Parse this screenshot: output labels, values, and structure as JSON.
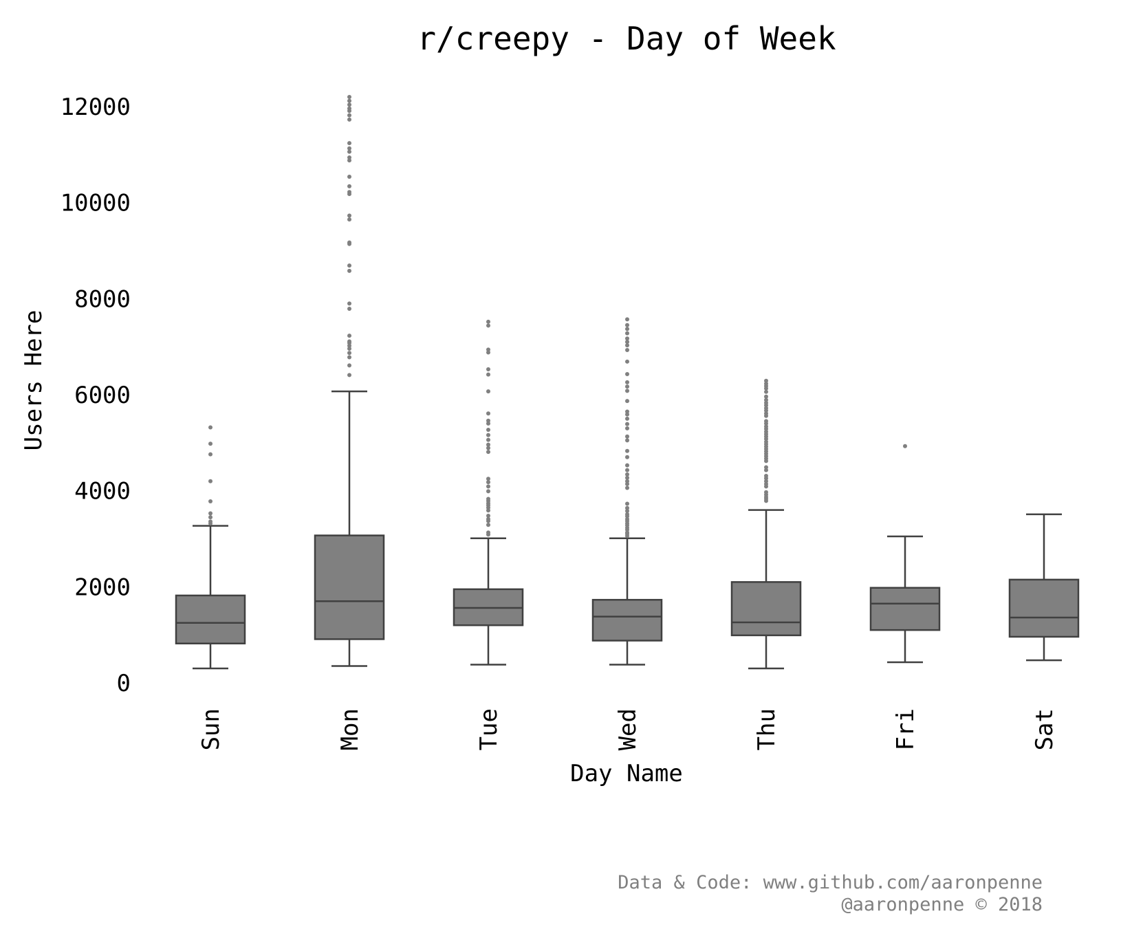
{
  "chart_data": {
    "type": "box",
    "title": "r/creepy - Day of Week",
    "xlabel": "Day Name",
    "ylabel": "Users Here",
    "ylim": [
      0,
      12500
    ],
    "yticks": [
      0,
      2000,
      4000,
      6000,
      8000,
      10000,
      12000
    ],
    "grid": false,
    "colors": {
      "box_fill": "#808080",
      "box_edge": "#404040",
      "outlier": "#808080"
    },
    "categories": [
      "Sun",
      "Mon",
      "Tue",
      "Wed",
      "Thu",
      "Fri",
      "Sat"
    ],
    "boxes": [
      {
        "category": "Sun",
        "whisker_low": 300,
        "q1": 820,
        "median": 1250,
        "q3": 1820,
        "whisker_high": 3270,
        "outliers": [
          3320,
          3360,
          3450,
          3530,
          3780,
          4200,
          4760,
          4980,
          5320
        ]
      },
      {
        "category": "Mon",
        "whisker_low": 350,
        "q1": 910,
        "median": 1700,
        "q3": 3070,
        "whisker_high": 6070,
        "outliers": [
          6410,
          6610,
          6780,
          6870,
          6960,
          7020,
          7080,
          7110,
          7230,
          7790,
          7900,
          8580,
          8690,
          9140,
          9170,
          9650,
          9730,
          10180,
          10220,
          10340,
          10540,
          10880,
          10940,
          11060,
          11130,
          11240,
          11730,
          11820,
          11910,
          11960,
          12040,
          12120,
          12200
        ]
      },
      {
        "category": "Tue",
        "whisker_low": 380,
        "q1": 1200,
        "median": 1560,
        "q3": 1950,
        "whisker_high": 3010,
        "outliers": [
          3090,
          3130,
          3290,
          3370,
          3410,
          3480,
          3590,
          3650,
          3700,
          3740,
          3790,
          3830,
          3990,
          4090,
          4180,
          4250,
          4810,
          4890,
          4960,
          5060,
          5160,
          5270,
          5400,
          5460,
          5610,
          6070,
          6420,
          6530,
          6880,
          6940,
          7440,
          7520
        ]
      },
      {
        "category": "Wed",
        "whisker_low": 380,
        "q1": 880,
        "median": 1380,
        "q3": 1730,
        "whisker_high": 3010,
        "outliers": [
          3060,
          3100,
          3130,
          3190,
          3230,
          3280,
          3320,
          3370,
          3410,
          3470,
          3510,
          3580,
          3640,
          3730,
          4060,
          4140,
          4200,
          4270,
          4340,
          4430,
          4530,
          4700,
          4830,
          5050,
          5130,
          5300,
          5390,
          5500,
          5590,
          5650,
          5870,
          6080,
          6170,
          6260,
          6430,
          6690,
          6930,
          7030,
          7100,
          7170,
          7280,
          7370,
          7450,
          7570
        ]
      },
      {
        "category": "Thu",
        "whisker_low": 300,
        "q1": 990,
        "median": 1260,
        "q3": 2100,
        "whisker_high": 3600,
        "outliers": [
          3790,
          3830,
          3870,
          3920,
          3970,
          4090,
          4140,
          4200,
          4260,
          4310,
          4430,
          4490,
          4620,
          4670,
          4720,
          4770,
          4820,
          4870,
          4920,
          4970,
          5020,
          5080,
          5130,
          5180,
          5230,
          5290,
          5340,
          5400,
          5450,
          5560,
          5610,
          5670,
          5720,
          5780,
          5830,
          5890,
          5960,
          6060,
          6130,
          6180,
          6230,
          6290
        ]
      },
      {
        "category": "Fri",
        "whisker_low": 430,
        "q1": 1100,
        "median": 1650,
        "q3": 1980,
        "whisker_high": 3050,
        "outliers": [
          4930
        ]
      },
      {
        "category": "Sat",
        "whisker_low": 470,
        "q1": 960,
        "median": 1360,
        "q3": 2150,
        "whisker_high": 3510,
        "outliers": []
      }
    ]
  },
  "credit": {
    "line1": "Data & Code: www.github.com/aaronpenne",
    "line2": "@aaronpenne © 2018"
  }
}
